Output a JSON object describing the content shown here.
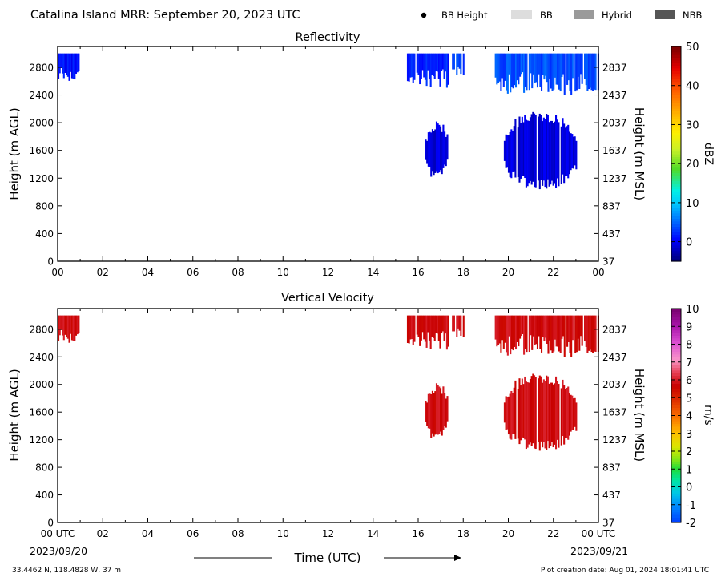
{
  "header": {
    "title": "Catalina Island MRR:  September 20, 2023 UTC",
    "legend": [
      {
        "label": "BB Height",
        "symbol": "dot",
        "color": "#000000"
      },
      {
        "label": "BB",
        "symbol": "swatch",
        "color": "#dddddd"
      },
      {
        "label": "Hybrid",
        "symbol": "swatch",
        "color": "#9a9a9a"
      },
      {
        "label": "NBB",
        "symbol": "swatch",
        "color": "#555555"
      }
    ]
  },
  "footer": {
    "date_start": "2023/09/20",
    "date_end": "2023/09/21",
    "xlabel": "Time (UTC)",
    "location": "33.4462 N, 118.4828 W, 37 m",
    "created": "Plot creation date: Aug 01, 2024 18:01:41 UTC"
  },
  "chart_data": [
    {
      "type": "heatmap",
      "title": "Reflectivity",
      "ylabel_left": "Height (m AGL)",
      "ylabel_right": "Height (m MSL)",
      "x_ticks": [
        "00",
        "02",
        "04",
        "06",
        "08",
        "10",
        "12",
        "14",
        "16",
        "18",
        "20",
        "22",
        "00"
      ],
      "xlim_hours": [
        0,
        24
      ],
      "ylim": [
        0,
        3100
      ],
      "y_ticks_left": [
        "0",
        "400",
        "800",
        "1200",
        "1600",
        "2000",
        "2400",
        "2800"
      ],
      "y_ticks_right": [
        "37",
        "437",
        "837",
        "1237",
        "1637",
        "2037",
        "2437",
        "2837"
      ],
      "colorbar": {
        "label": "dBZ",
        "min": -5,
        "max": 50,
        "ticks": [
          "0",
          "10",
          "20",
          "30",
          "40",
          "50"
        ]
      },
      "echo_regions": [
        {
          "t_start": 0.0,
          "t_end": 0.95,
          "h_bottom": 2600,
          "h_top": 3000,
          "value": 1
        },
        {
          "t_start": 15.5,
          "t_end": 17.3,
          "h_bottom": 2500,
          "h_top": 3000,
          "value": 2
        },
        {
          "t_start": 17.5,
          "t_end": 18.0,
          "h_bottom": 2600,
          "h_top": 3000,
          "value": 3
        },
        {
          "t_start": 19.4,
          "t_end": 24.0,
          "h_bottom": 2400,
          "h_top": 3000,
          "value": 4
        },
        {
          "t_start": 16.3,
          "t_end": 17.3,
          "h_bottom": 1250,
          "h_top": 1950,
          "value": -1
        },
        {
          "t_start": 19.8,
          "t_end": 23.0,
          "h_bottom": 1100,
          "h_top": 2100,
          "value": -1
        }
      ]
    },
    {
      "type": "heatmap",
      "title": "Vertical Velocity",
      "ylabel_left": "Height (m AGL)",
      "ylabel_right": "Height (m MSL)",
      "x_ticks": [
        "00 UTC",
        "02",
        "04",
        "06",
        "08",
        "10",
        "12",
        "14",
        "16",
        "18",
        "20",
        "22",
        "00 UTC"
      ],
      "xlim_hours": [
        0,
        24
      ],
      "ylim": [
        0,
        3100
      ],
      "y_ticks_left": [
        "0",
        "400",
        "800",
        "1200",
        "1600",
        "2000",
        "2400",
        "2800"
      ],
      "y_ticks_right": [
        "37",
        "437",
        "837",
        "1237",
        "1637",
        "2037",
        "2437",
        "2837"
      ],
      "colorbar": {
        "label": "m/s",
        "min": -2,
        "max": 10,
        "ticks": [
          "-2",
          "-1",
          "0",
          "1",
          "2",
          "3",
          "4",
          "5",
          "6",
          "7",
          "8",
          "9",
          "10"
        ]
      },
      "echo_regions": [
        {
          "t_start": 0.0,
          "t_end": 0.95,
          "h_bottom": 2600,
          "h_top": 3000,
          "value": 5.8
        },
        {
          "t_start": 15.5,
          "t_end": 17.3,
          "h_bottom": 2500,
          "h_top": 3000,
          "value": 5.8
        },
        {
          "t_start": 17.5,
          "t_end": 18.0,
          "h_bottom": 2600,
          "h_top": 3000,
          "value": 5.8
        },
        {
          "t_start": 19.4,
          "t_end": 24.0,
          "h_bottom": 2400,
          "h_top": 3000,
          "value": 5.8
        },
        {
          "t_start": 16.3,
          "t_end": 17.3,
          "h_bottom": 1250,
          "h_top": 1950,
          "value": 5.8
        },
        {
          "t_start": 19.8,
          "t_end": 23.0,
          "h_bottom": 1100,
          "h_top": 2100,
          "value": 5.8
        }
      ]
    }
  ]
}
